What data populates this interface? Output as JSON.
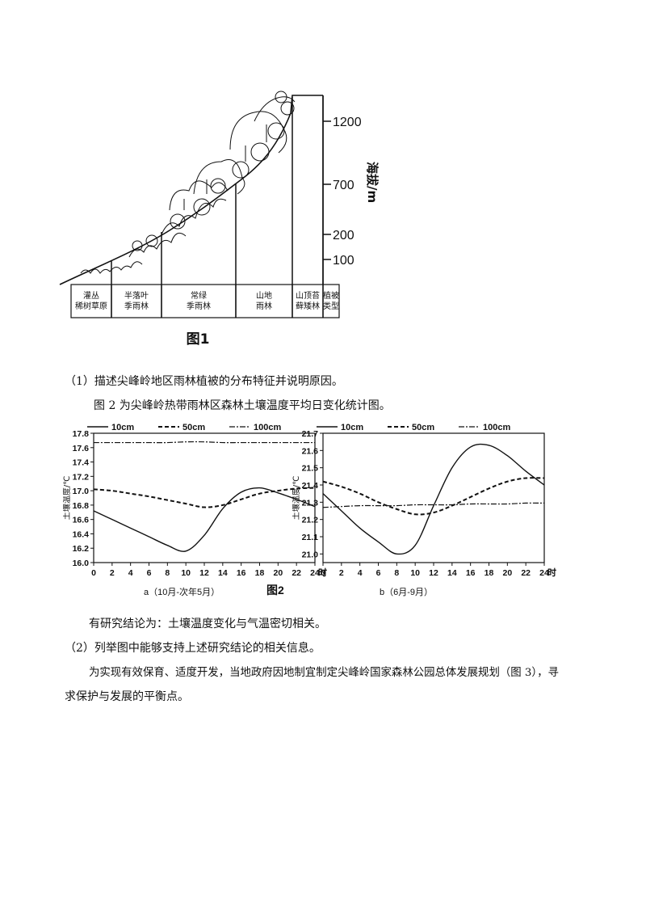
{
  "figure1": {
    "title": "图1",
    "axis_label": "海拔/m",
    "elevations": [
      "1200",
      "700",
      "200",
      "100"
    ],
    "veg_types": [
      "灌丛\n稀树草原",
      "半落叶\n季雨林",
      "常绿\n季雨林",
      "山地\n雨林",
      "山顶苔\n藓矮林",
      "植被\n类型"
    ]
  },
  "text": {
    "q1": "（1）描述尖峰岭地区雨林植被的分布特征并说明原因。",
    "intro2": "图 2 为尖峰岭热带雨林区森林土壤温度平均日变化统计图。",
    "conclusion": "有研究结论为：土壤温度变化与气温密切相关。",
    "q2": "（2）列举图中能够支持上述研究结论的相关信息。",
    "para3_line1": "为实现有效保育、适度开发，当地政府因地制宜制定尖峰岭国家森林公园总体发展规划（图 3），寻",
    "para3_line2": "求保护与发展的平衡点。"
  },
  "figure2": {
    "title": "图2",
    "caption_a": "a（10月-次年5月）",
    "caption_b": "b（6月-9月）"
  },
  "chart_data": [
    {
      "type": "line",
      "title": "",
      "xlabel": "时",
      "ylabel": "土壤温度/℃",
      "x": [
        0,
        2,
        4,
        6,
        8,
        10,
        12,
        14,
        16,
        18,
        20,
        22,
        24
      ],
      "xlim": [
        0,
        24
      ],
      "ylim": [
        16.0,
        17.8
      ],
      "yticks": [
        "16.0",
        "16.2",
        "16.4",
        "16.6",
        "16.8",
        "17.0",
        "17.2",
        "17.4",
        "17.6",
        "17.8"
      ],
      "series": [
        {
          "name": "10cm",
          "style": "solid",
          "values": [
            16.72,
            16.6,
            16.48,
            16.36,
            16.24,
            16.16,
            16.38,
            16.75,
            16.98,
            17.04,
            16.97,
            16.88,
            16.78
          ]
        },
        {
          "name": "50cm",
          "style": "dashed",
          "values": [
            17.02,
            17.0,
            16.96,
            16.92,
            16.87,
            16.82,
            16.77,
            16.8,
            16.88,
            16.96,
            17.0,
            17.03,
            17.04
          ]
        },
        {
          "name": "100cm",
          "style": "dashdot",
          "values": [
            17.67,
            17.67,
            17.67,
            17.67,
            17.67,
            17.68,
            17.68,
            17.67,
            17.67,
            17.67,
            17.67,
            17.67,
            17.67
          ]
        }
      ]
    },
    {
      "type": "line",
      "title": "",
      "xlabel": "时",
      "ylabel": "土壤温度/℃",
      "x": [
        0,
        2,
        4,
        6,
        8,
        10,
        12,
        14,
        16,
        18,
        20,
        22,
        24
      ],
      "xlim": [
        0,
        24
      ],
      "ylim": [
        20.95,
        21.7
      ],
      "yticks": [
        "21.0",
        "21.1",
        "21.2",
        "21.3",
        "21.4",
        "21.5",
        "21.6",
        "21.7"
      ],
      "series": [
        {
          "name": "10cm",
          "style": "solid",
          "values": [
            21.35,
            21.25,
            21.15,
            21.07,
            21.0,
            21.05,
            21.28,
            21.5,
            21.62,
            21.63,
            21.57,
            21.48,
            21.4
          ]
        },
        {
          "name": "50cm",
          "style": "dashed",
          "values": [
            21.42,
            21.39,
            21.35,
            21.3,
            21.26,
            21.23,
            21.24,
            21.28,
            21.33,
            21.38,
            21.42,
            21.44,
            21.44
          ]
        },
        {
          "name": "100cm",
          "style": "dashdot",
          "values": [
            21.27,
            21.275,
            21.28,
            21.28,
            21.28,
            21.285,
            21.285,
            21.285,
            21.29,
            21.29,
            21.29,
            21.295,
            21.295
          ]
        }
      ]
    }
  ]
}
